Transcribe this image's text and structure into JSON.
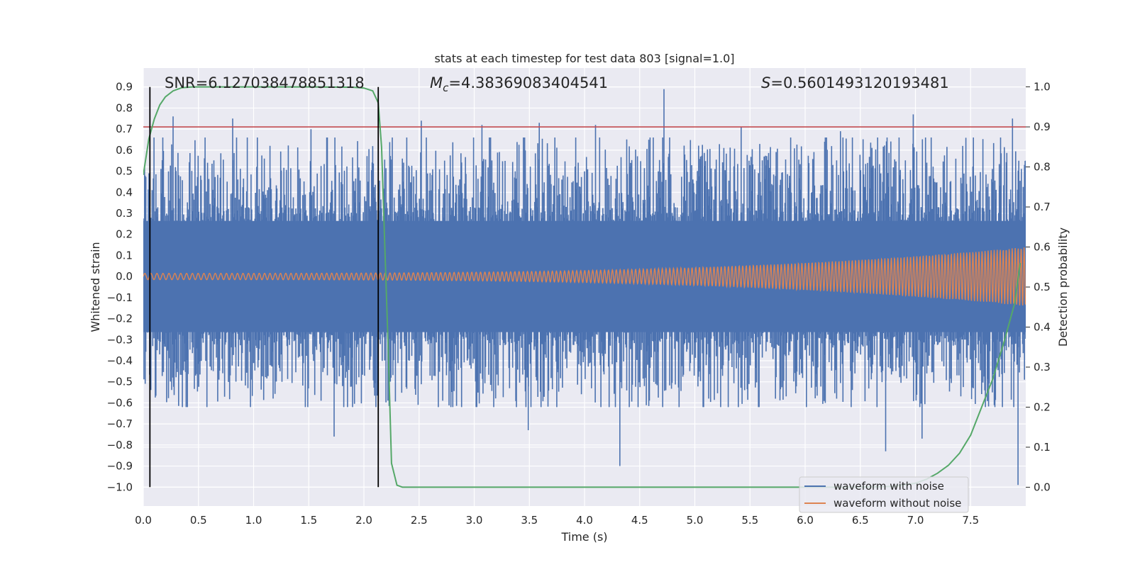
{
  "chart_data": {
    "type": "line",
    "title": "stats at each timestep for test data 803 [signal=1.0]",
    "xlabel": "Time (s)",
    "ylabel": "Whitened strain",
    "ylabel_right": "Detection probability",
    "xlim": [
      0,
      8
    ],
    "ylim": [
      -1.09,
      0.99
    ],
    "ylim_right": [
      -0.047,
      1.047
    ],
    "x_ticks": [
      0.0,
      0.5,
      1.0,
      1.5,
      2.0,
      2.5,
      3.0,
      3.5,
      4.0,
      4.5,
      5.0,
      5.5,
      6.0,
      6.5,
      7.0,
      7.5
    ],
    "x_tick_labels": [
      "0.0",
      "0.5",
      "1.0",
      "1.5",
      "2.0",
      "2.5",
      "3.0",
      "3.5",
      "4.0",
      "4.5",
      "5.0",
      "5.5",
      "6.0",
      "6.5",
      "7.0",
      "7.5"
    ],
    "y_ticks": [
      0.9,
      0.8,
      0.7,
      0.6,
      0.5,
      0.4,
      0.3,
      0.2,
      0.1,
      0.0,
      -0.1,
      -0.2,
      -0.3,
      -0.4,
      -0.5,
      -0.6,
      -0.7,
      -0.8,
      -0.9,
      -1.0
    ],
    "y_tick_labels": [
      "0.9",
      "0.8",
      "0.7",
      "0.6",
      "0.5",
      "0.4",
      "0.3",
      "0.2",
      "0.1",
      "0.0",
      "−0.1",
      "−0.2",
      "−0.3",
      "−0.4",
      "−0.5",
      "−0.6",
      "−0.7",
      "−0.8",
      "−0.9",
      "−1.0"
    ],
    "y_right_ticks": [
      1.0,
      0.9,
      0.8,
      0.7,
      0.6,
      0.5,
      0.4,
      0.3,
      0.2,
      0.1,
      0.0
    ],
    "y_right_tick_labels": [
      "1.0",
      "0.9",
      "0.8",
      "0.7",
      "0.6",
      "0.5",
      "0.4",
      "0.3",
      "0.2",
      "0.1",
      "0.0"
    ],
    "grid": true,
    "legend_position": "bottom-right",
    "annotations": {
      "snr": "SNR=6.127038478851318",
      "mc_symbol": "M",
      "mc_sub": "c",
      "mc_value": "=4.38369083404541",
      "s_symbol": "S",
      "s_value": "=0.5601493120193481"
    },
    "threshold_line": {
      "axis": "right",
      "y": 0.9,
      "color": "#c44e52"
    },
    "vertical_lines": [
      0.06,
      2.13
    ],
    "vertical_lines_range": [
      -1.0,
      0.9
    ],
    "series": [
      {
        "name": "waveform with noise",
        "color": "#4c72b0",
        "axis": "left",
        "noise_band_abs": 0.33,
        "peak_abs_max": 0.9,
        "peaks": [
          [
            0.27,
            0.76
          ],
          [
            0.81,
            0.75
          ],
          [
            1.52,
            0.7
          ],
          [
            2.52,
            0.74
          ],
          [
            3.07,
            0.72
          ],
          [
            3.59,
            0.73
          ],
          [
            4.1,
            0.72
          ],
          [
            4.72,
            0.89
          ],
          [
            5.42,
            0.71
          ],
          [
            6.32,
            0.69
          ],
          [
            6.98,
            0.77
          ],
          [
            7.88,
            0.75
          ],
          [
            1.73,
            -0.76
          ],
          [
            3.49,
            -0.73
          ],
          [
            4.32,
            -0.9
          ],
          [
            6.73,
            -0.83
          ],
          [
            7.06,
            -0.77
          ],
          [
            7.93,
            -0.99
          ]
        ]
      },
      {
        "name": "waveform without noise",
        "color": "#dd8452",
        "axis": "left",
        "amplitude_start": 0.015,
        "amplitude_end": 0.14
      },
      {
        "name": "",
        "color": "#55a868",
        "axis": "right",
        "x": [
          0.0,
          0.05,
          0.1,
          0.15,
          0.2,
          0.27,
          0.35,
          0.45,
          1.0,
          1.5,
          1.9,
          2.0,
          2.08,
          2.13,
          2.16,
          2.19,
          2.22,
          2.25,
          2.3,
          2.35,
          3.0,
          4.0,
          5.0,
          6.0,
          6.5,
          6.8,
          7.0,
          7.1,
          7.2,
          7.3,
          7.4,
          7.5,
          7.6,
          7.7,
          7.8,
          7.9,
          7.95
        ],
        "y": [
          0.78,
          0.87,
          0.92,
          0.955,
          0.975,
          0.99,
          0.998,
          1.0,
          1.0,
          1.0,
          0.999,
          0.997,
          0.99,
          0.96,
          0.85,
          0.6,
          0.35,
          0.06,
          0.005,
          0.0,
          0.0,
          0.0,
          0.0,
          0.0,
          0.0,
          0.002,
          0.01,
          0.02,
          0.035,
          0.055,
          0.085,
          0.13,
          0.2,
          0.27,
          0.36,
          0.46,
          0.56
        ]
      }
    ]
  }
}
